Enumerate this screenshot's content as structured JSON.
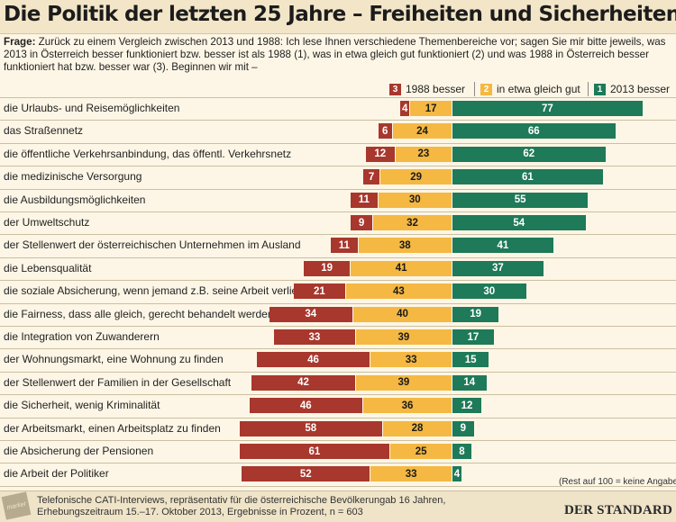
{
  "title": "Die Politik der letzten 25 Jahre – Freiheiten und Sicherheiten",
  "question_label": "Frage:",
  "question_text": "Zurück zu einem Vergleich zwischen 2013 und 1988: Ich lese Ihnen verschiedene Themenbereiche vor; sagen Sie mir bitte jeweils, was 2013 in Österreich besser funktioniert bzw. besser ist als 1988 (1), was in etwa gleich gut funktioniert (2) und was 1988 in Österreich besser funktioniert hat bzw. besser war (3). Beginnen wir mit –",
  "colors": {
    "besser1988": "#a8372d",
    "gleich": "#f4b843",
    "besser2013": "#1e7a58",
    "bg": "#fdf6e6"
  },
  "chart_data": {
    "type": "bar",
    "orientation": "horizontal",
    "stacked": true,
    "diverging": true,
    "categories": [
      "die Urlaubs- und Reisemöglichkeiten",
      "das Straßennetz",
      "die öffentliche Verkehrsanbindung, das öffentl. Verkehrsnetz",
      "die medizinische Versorgung",
      "die Ausbildungsmöglichkeiten",
      "der Umweltschutz",
      "der Stellenwert der österreichischen Unternehmen im Ausland",
      "die Lebensqualität",
      "die soziale Absicherung, wenn jemand z.B. seine Arbeit verliert",
      "die Fairness, dass alle gleich, gerecht behandelt werden",
      "die Integration von Zuwanderern",
      "der Wohnungsmarkt, eine Wohnung zu finden",
      "der Stellenwert der Familien in der Gesellschaft",
      "die Sicherheit, wenig Kriminalität",
      "der Arbeitsmarkt, einen Arbeitsplatz zu finden",
      "die Absicherung der Pensionen",
      "die Arbeit der Politiker"
    ],
    "series": [
      {
        "name": "1988 besser",
        "code": "3",
        "values": [
          4,
          6,
          12,
          7,
          11,
          9,
          11,
          19,
          21,
          34,
          33,
          46,
          42,
          46,
          58,
          61,
          52
        ]
      },
      {
        "name": "in etwa gleich gut",
        "code": "2",
        "values": [
          17,
          24,
          23,
          29,
          30,
          32,
          38,
          41,
          43,
          40,
          39,
          33,
          39,
          36,
          28,
          25,
          33
        ]
      },
      {
        "name": "2013 besser",
        "code": "1",
        "values": [
          77,
          66,
          62,
          61,
          55,
          54,
          41,
          37,
          30,
          19,
          17,
          15,
          14,
          12,
          9,
          8,
          4
        ]
      }
    ],
    "unit": "%",
    "legend_position": "top-right",
    "note": "(Rest auf 100 = keine Angabe)"
  },
  "footer": {
    "line1": "Telefonische CATI-Interviews, repräsentativ für die österreichische Bevölkerungab 16 Jahren,",
    "line2": "Erhebungszeitraum 15.–17. Oktober 2013, Ergebnisse in Prozent, n = 603",
    "brand": "DER STANDARD",
    "logo_text": "market"
  }
}
